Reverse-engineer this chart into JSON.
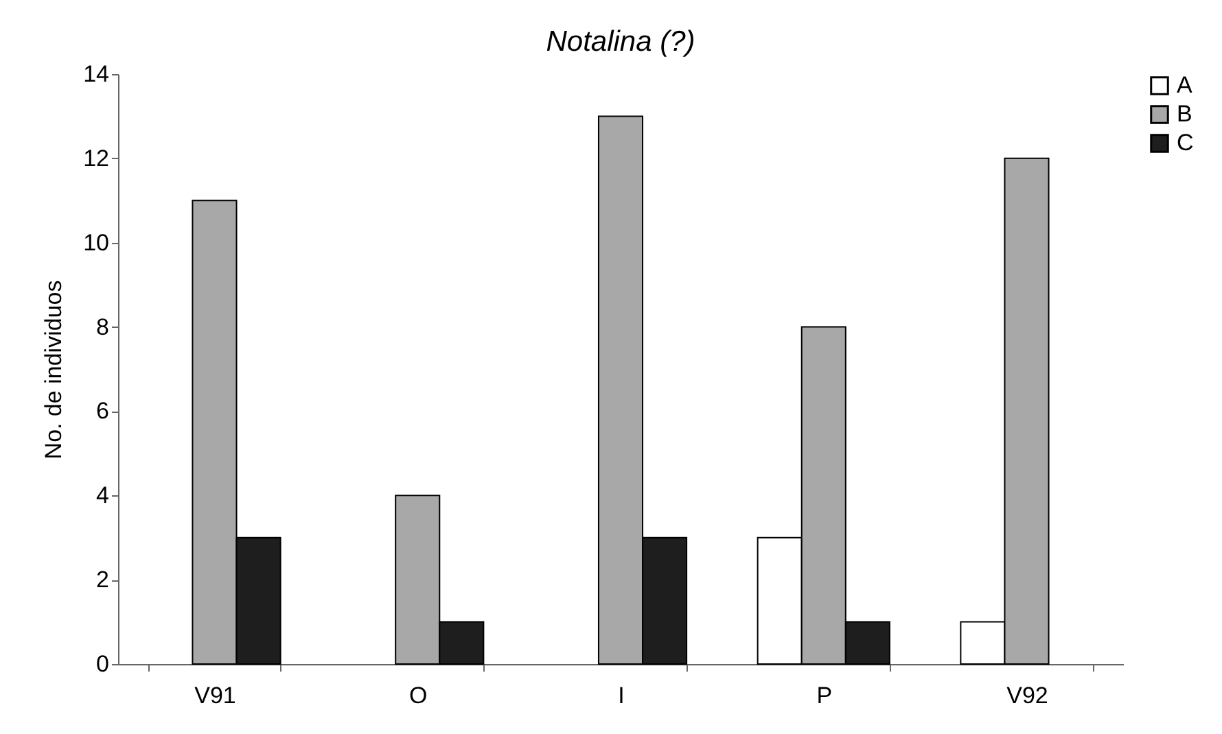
{
  "chart_data": {
    "type": "bar",
    "title": "Notalina (?)",
    "ylabel": "No. de individuos",
    "categories": [
      "V91",
      "O",
      "I",
      "P",
      "V92"
    ],
    "series": [
      {
        "name": "A",
        "color": "#ffffff",
        "values": [
          0,
          0,
          0,
          3,
          1
        ]
      },
      {
        "name": "B",
        "color": "#a8a8a8",
        "values": [
          11,
          4,
          13,
          8,
          12
        ]
      },
      {
        "name": "C",
        "color": "#1e1e1e",
        "values": [
          3,
          1,
          3,
          1,
          0
        ]
      }
    ],
    "ylim": [
      0,
      14
    ],
    "yticks": [
      0,
      2,
      4,
      6,
      8,
      10,
      12,
      14
    ],
    "grid": false,
    "legend": "right"
  }
}
